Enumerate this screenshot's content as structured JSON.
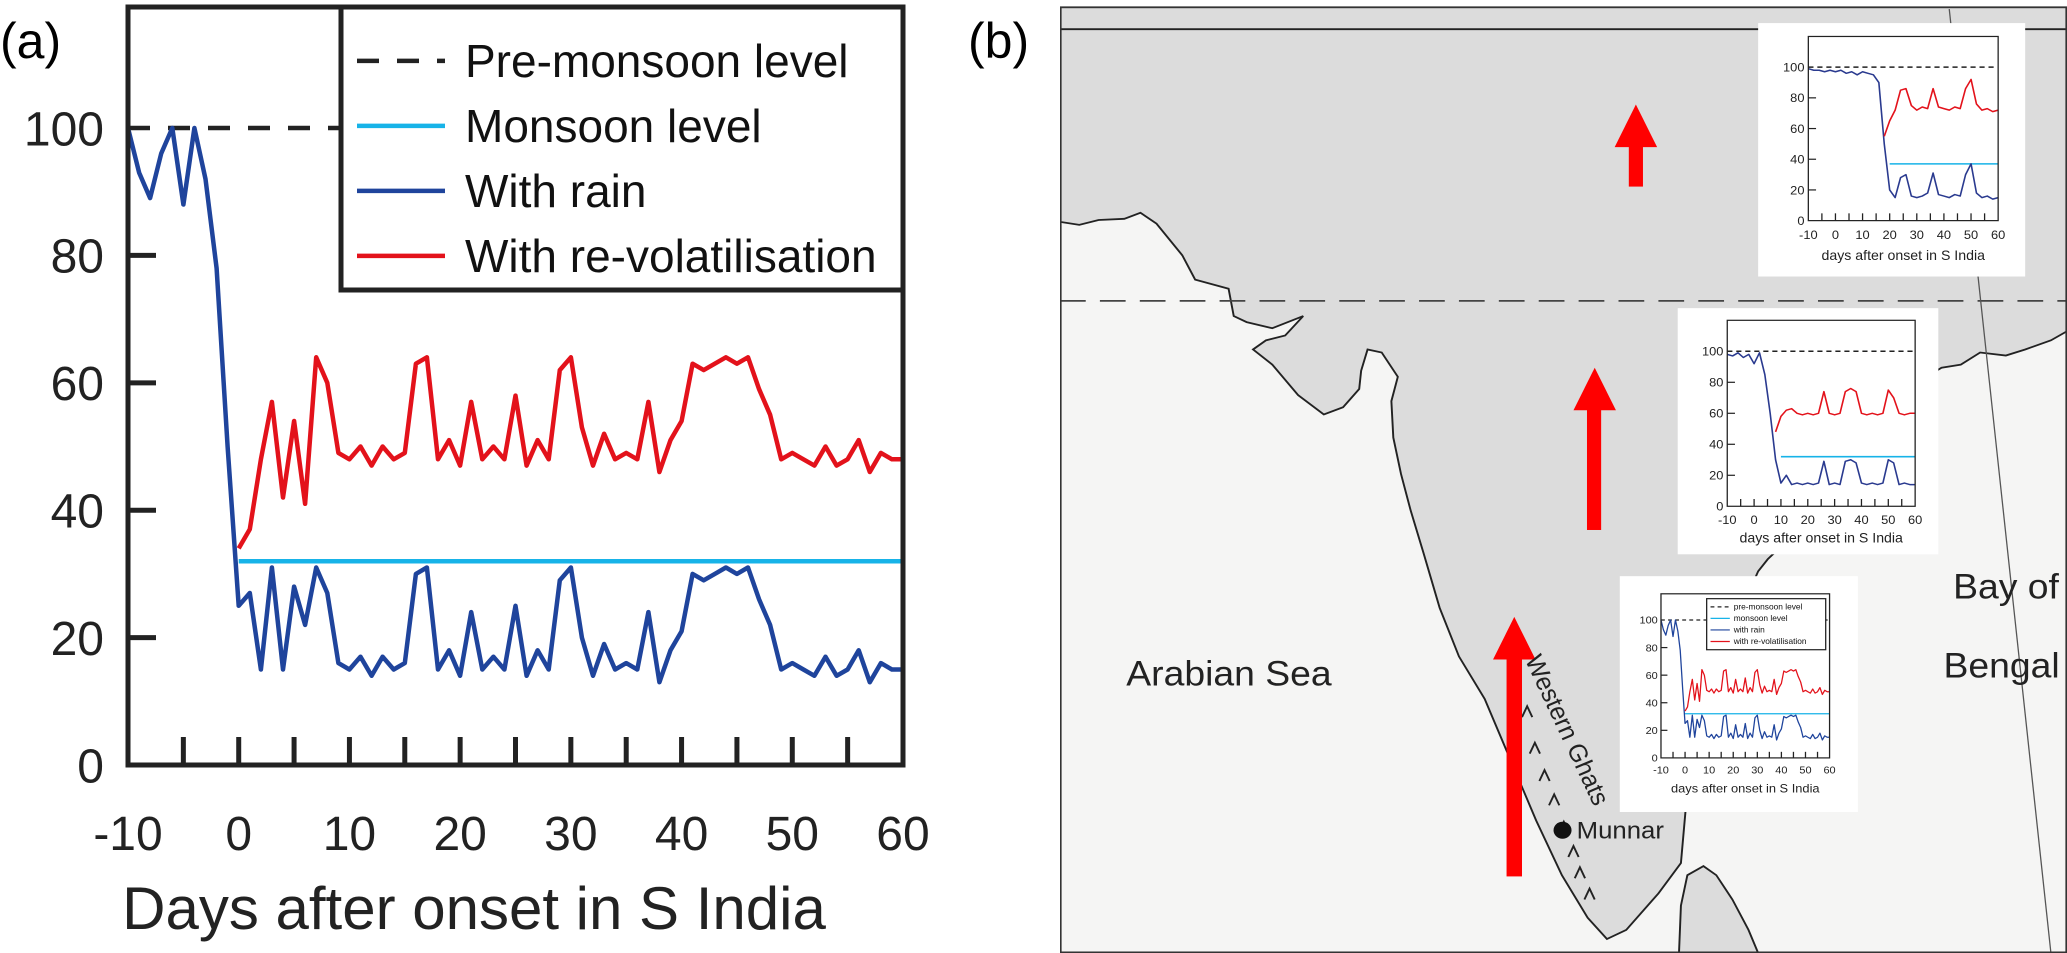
{
  "panel_labels": {
    "a": "(a)",
    "b": "(b)"
  },
  "colors": {
    "pre_monsoon": "#222222",
    "monsoon": "#17b3e8",
    "with_rain": "#1f449c",
    "with_revol": "#e3121b",
    "land": "#dcdcdc",
    "sea": "#f5f5f4",
    "arrow": "#ff0000"
  },
  "map": {
    "labels": {
      "arabian_sea": "Arabian Sea",
      "bay_of": "Bay of",
      "bengal": "Bengal",
      "western_ghats": "Western Ghats",
      "munnar": "Munnar"
    }
  },
  "chart_data": [
    {
      "id": "main",
      "type": "line",
      "title": "",
      "xlabel": "Days after onset in S India",
      "ylabel": "",
      "xlim": [
        -10,
        60
      ],
      "ylim": [
        0,
        119
      ],
      "xticks": [
        -10,
        0,
        10,
        20,
        30,
        40,
        50,
        60
      ],
      "yticks": [
        0,
        20,
        40,
        60,
        80,
        100
      ],
      "legend_position": "top-right",
      "series": [
        {
          "name": "Pre-monsoon level",
          "color": "#222222",
          "style": "dashed",
          "x": [
            -10,
            60
          ],
          "y": [
            100,
            100
          ]
        },
        {
          "name": "Monsoon level",
          "color": "#17b3e8",
          "style": "solid",
          "x": [
            0,
            60
          ],
          "y": [
            32,
            32
          ]
        },
        {
          "name": "With rain",
          "color": "#1f449c",
          "style": "solid",
          "x": [
            -10,
            -9,
            -8,
            -7,
            -6,
            -5,
            -4,
            -3,
            -2,
            -1,
            0,
            1,
            2,
            3,
            4,
            5,
            6,
            7,
            8,
            9,
            10,
            11,
            12,
            13,
            14,
            15,
            16,
            17,
            18,
            19,
            20,
            21,
            22,
            23,
            24,
            25,
            26,
            27,
            28,
            29,
            30,
            31,
            32,
            33,
            34,
            35,
            36,
            37,
            38,
            39,
            40,
            41,
            42,
            43,
            44,
            45,
            46,
            47,
            48,
            49,
            50,
            51,
            52,
            53,
            54,
            55,
            56,
            57,
            58,
            59,
            60
          ],
          "y": [
            100,
            93,
            89,
            96,
            100,
            88,
            100,
            92,
            78,
            50,
            25,
            27,
            15,
            31,
            15,
            28,
            22,
            31,
            27,
            16,
            15,
            17,
            14,
            17,
            15,
            16,
            30,
            31,
            15,
            18,
            14,
            24,
            15,
            17,
            15,
            25,
            14,
            18,
            15,
            29,
            31,
            20,
            14,
            19,
            15,
            16,
            15,
            24,
            13,
            18,
            21,
            30,
            29,
            30,
            31,
            30,
            31,
            26,
            22,
            15,
            16,
            15,
            14,
            17,
            14,
            15,
            18,
            13,
            16,
            15,
            15
          ]
        },
        {
          "name": "With re-volatilisation",
          "color": "#e3121b",
          "style": "solid",
          "x": [
            0,
            1,
            2,
            3,
            4,
            5,
            6,
            7,
            8,
            9,
            10,
            11,
            12,
            13,
            14,
            15,
            16,
            17,
            18,
            19,
            20,
            21,
            22,
            23,
            24,
            25,
            26,
            27,
            28,
            29,
            30,
            31,
            32,
            33,
            34,
            35,
            36,
            37,
            38,
            39,
            40,
            41,
            42,
            43,
            44,
            45,
            46,
            47,
            48,
            49,
            50,
            51,
            52,
            53,
            54,
            55,
            56,
            57,
            58,
            59,
            60
          ],
          "y": [
            34,
            37,
            48,
            57,
            42,
            54,
            41,
            64,
            60,
            49,
            48,
            50,
            47,
            50,
            48,
            49,
            63,
            64,
            48,
            51,
            47,
            57,
            48,
            50,
            48,
            58,
            47,
            51,
            48,
            62,
            64,
            53,
            47,
            52,
            48,
            49,
            48,
            57,
            46,
            51,
            54,
            63,
            62,
            63,
            64,
            63,
            64,
            59,
            55,
            48,
            49,
            48,
            47,
            50,
            47,
            48,
            51,
            46,
            49,
            48,
            48
          ]
        }
      ]
    },
    {
      "id": "inset-north",
      "type": "line",
      "xlabel": "days after onset in S India",
      "xlim": [
        -10,
        60
      ],
      "ylim": [
        0,
        120
      ],
      "xticks": [
        -10,
        0,
        10,
        20,
        30,
        40,
        50,
        60
      ],
      "yticks": [
        0,
        20,
        40,
        60,
        80,
        100
      ],
      "series": [
        {
          "name": "",
          "color": "#222222",
          "style": "dashed",
          "x": [
            -10,
            60
          ],
          "y": [
            100,
            100
          ]
        },
        {
          "name": "",
          "color": "#17b3e8",
          "style": "solid",
          "x": [
            20,
            60
          ],
          "y": [
            37,
            37
          ]
        },
        {
          "name": "",
          "color": "#2a3a8f",
          "style": "solid",
          "x": [
            -10,
            -8,
            -6,
            -4,
            -2,
            0,
            2,
            4,
            6,
            8,
            10,
            12,
            14,
            16,
            18,
            20,
            22,
            24,
            26,
            28,
            30,
            32,
            34,
            36,
            38,
            40,
            42,
            44,
            46,
            48,
            50,
            52,
            54,
            56,
            58,
            60
          ],
          "y": [
            99,
            98,
            98,
            97,
            98,
            97,
            98,
            96,
            97,
            95,
            97,
            96,
            95,
            90,
            50,
            20,
            15,
            28,
            30,
            16,
            15,
            16,
            18,
            31,
            17,
            16,
            15,
            17,
            16,
            30,
            37,
            18,
            15,
            16,
            14,
            15
          ]
        },
        {
          "name": "",
          "color": "#e3121b",
          "style": "solid",
          "x": [
            18,
            20,
            22,
            24,
            26,
            28,
            30,
            32,
            34,
            36,
            38,
            40,
            42,
            44,
            46,
            48,
            50,
            52,
            54,
            56,
            58,
            60
          ],
          "y": [
            55,
            65,
            72,
            85,
            86,
            75,
            72,
            74,
            73,
            86,
            74,
            73,
            72,
            74,
            73,
            86,
            92,
            76,
            72,
            73,
            71,
            72
          ]
        }
      ]
    },
    {
      "id": "inset-central",
      "type": "line",
      "xlabel": "days after onset in S India",
      "xlim": [
        -10,
        60
      ],
      "ylim": [
        0,
        120
      ],
      "xticks": [
        -10,
        0,
        10,
        20,
        30,
        40,
        50,
        60
      ],
      "yticks": [
        0,
        20,
        40,
        60,
        80,
        100
      ],
      "series": [
        {
          "name": "",
          "color": "#222222",
          "style": "dashed",
          "x": [
            -10,
            60
          ],
          "y": [
            100,
            100
          ]
        },
        {
          "name": "",
          "color": "#17b3e8",
          "style": "solid",
          "x": [
            10,
            60
          ],
          "y": [
            32,
            32
          ]
        },
        {
          "name": "",
          "color": "#2a3a8f",
          "style": "solid",
          "x": [
            -10,
            -8,
            -6,
            -4,
            -2,
            0,
            2,
            4,
            6,
            8,
            10,
            12,
            14,
            16,
            18,
            20,
            22,
            24,
            26,
            28,
            30,
            32,
            34,
            36,
            38,
            40,
            42,
            44,
            46,
            48,
            50,
            52,
            54,
            56,
            58,
            60
          ],
          "y": [
            98,
            97,
            99,
            96,
            98,
            92,
            99,
            85,
            60,
            30,
            15,
            20,
            14,
            15,
            14,
            15,
            14,
            15,
            29,
            14,
            15,
            14,
            29,
            30,
            28,
            15,
            14,
            15,
            14,
            15,
            30,
            28,
            14,
            15,
            14,
            14
          ]
        },
        {
          "name": "",
          "color": "#e3121b",
          "style": "solid",
          "x": [
            8,
            10,
            12,
            14,
            16,
            18,
            20,
            22,
            24,
            26,
            28,
            30,
            32,
            34,
            36,
            38,
            40,
            42,
            44,
            46,
            48,
            50,
            52,
            54,
            56,
            58,
            60
          ],
          "y": [
            48,
            58,
            62,
            63,
            60,
            59,
            60,
            59,
            60,
            74,
            60,
            59,
            60,
            74,
            76,
            74,
            60,
            59,
            60,
            59,
            60,
            75,
            70,
            60,
            59,
            60,
            60
          ]
        }
      ]
    },
    {
      "id": "inset-south",
      "type": "line",
      "xlabel": "days after onset in S India",
      "xlim": [
        -10,
        60
      ],
      "ylim": [
        0,
        119
      ],
      "xticks": [
        -10,
        0,
        10,
        20,
        30,
        40,
        50,
        60
      ],
      "yticks": [
        0,
        20,
        40,
        60,
        80,
        100
      ],
      "legend": [
        "pre-monsoon level",
        "monsoon level",
        "with rain",
        "with re-volatilisation"
      ],
      "series_source": "main"
    }
  ]
}
